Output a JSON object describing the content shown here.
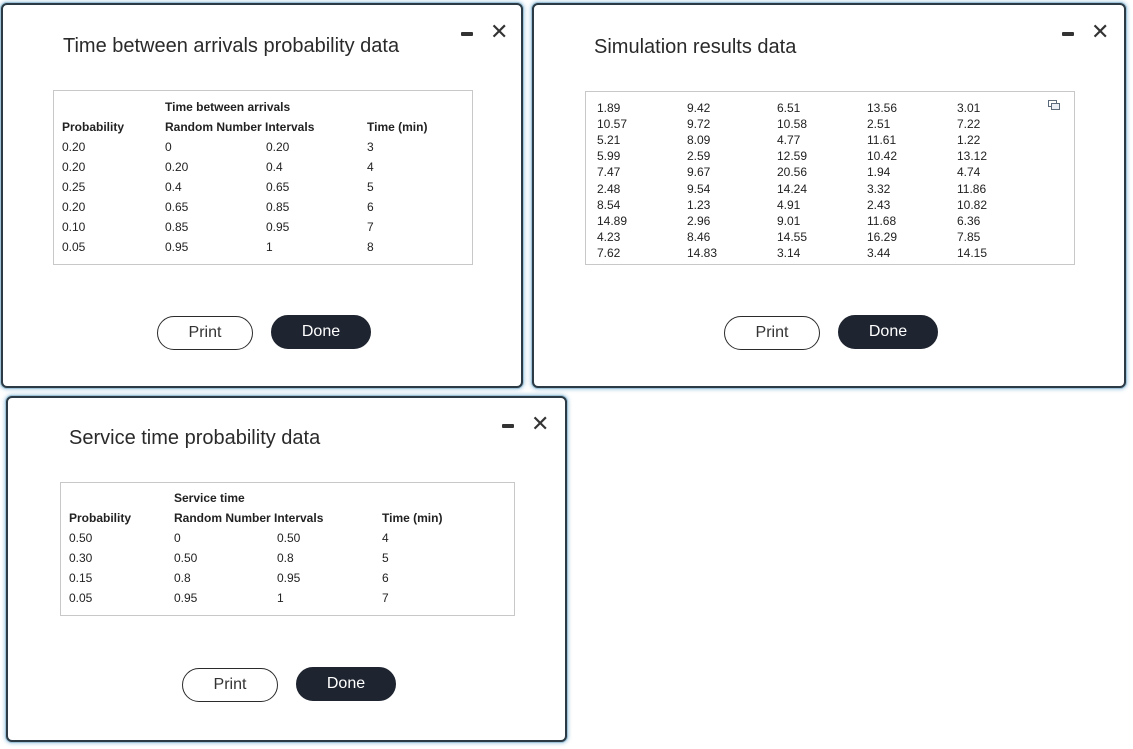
{
  "dialogs": {
    "arrivals": {
      "title": "Time between arrivals probability data",
      "header_group": "Time between arrivals",
      "col_probability": "Probability",
      "col_intervals": "Random Number Intervals",
      "col_time": "Time (min)",
      "rows": [
        {
          "probability": "0.20",
          "from": "0",
          "to": "0.20",
          "time": "3"
        },
        {
          "probability": "0.20",
          "from": "0.20",
          "to": "0.4",
          "time": "4"
        },
        {
          "probability": "0.25",
          "from": "0.4",
          "to": "0.65",
          "time": "5"
        },
        {
          "probability": "0.20",
          "from": "0.65",
          "to": "0.85",
          "time": "6"
        },
        {
          "probability": "0.10",
          "from": "0.85",
          "to": "0.95",
          "time": "7"
        },
        {
          "probability": "0.05",
          "from": "0.95",
          "to": "1",
          "time": "8"
        }
      ],
      "print_label": "Print",
      "done_label": "Done",
      "minimize_icon": "minimize-icon",
      "close_icon": "close-icon",
      "close_glyph": "✕"
    },
    "simulation": {
      "title": "Simulation results data",
      "columns": [
        [
          "1.89",
          "10.57",
          "5.21",
          "5.99",
          "7.47",
          "2.48",
          "8.54",
          "14.89",
          "4.23",
          "7.62"
        ],
        [
          "9.42",
          "9.72",
          "8.09",
          "2.59",
          "9.67",
          "9.54",
          "1.23",
          "2.96",
          "8.46",
          "14.83"
        ],
        [
          "6.51",
          "10.58",
          "4.77",
          "12.59",
          "20.56",
          "14.24",
          "4.91",
          "9.01",
          "14.55",
          "3.14"
        ],
        [
          "13.56",
          "2.51",
          "11.61",
          "10.42",
          "1.94",
          "3.32",
          "2.43",
          "11.68",
          "16.29",
          "3.44"
        ],
        [
          "3.01",
          "7.22",
          "1.22",
          "13.12",
          "4.74",
          "11.86",
          "10.82",
          "6.36",
          "7.85",
          "14.15"
        ]
      ],
      "copy_icon": "copy-icon",
      "print_label": "Print",
      "done_label": "Done",
      "close_glyph": "✕"
    },
    "service": {
      "title": "Service time probability data",
      "header_group": "Service time",
      "col_probability": "Probability",
      "col_intervals": "Random Number Intervals",
      "col_time": "Time (min)",
      "rows": [
        {
          "probability": "0.50",
          "from": "0",
          "to": "0.50",
          "time": "4"
        },
        {
          "probability": "0.30",
          "from": "0.50",
          "to": "0.8",
          "time": "5"
        },
        {
          "probability": "0.15",
          "from": "0.8",
          "to": "0.95",
          "time": "6"
        },
        {
          "probability": "0.05",
          "from": "0.95",
          "to": "1",
          "time": "7"
        }
      ],
      "print_label": "Print",
      "done_label": "Done",
      "close_glyph": "✕"
    }
  }
}
